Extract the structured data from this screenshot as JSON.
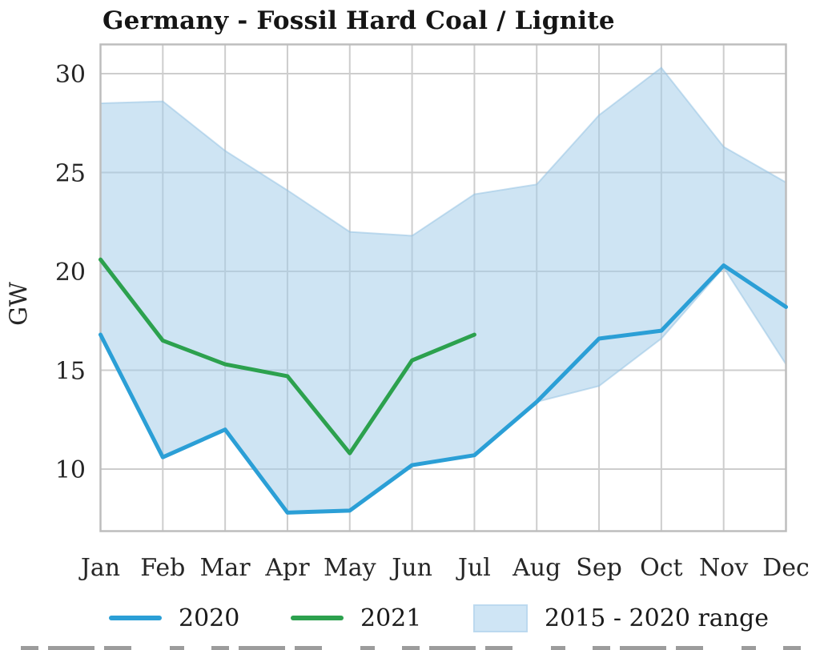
{
  "title": "Germany - Fossil Hard Coal / Lignite",
  "ylabel": "GW",
  "legend": [
    {
      "label": "2020",
      "swatch": "line",
      "color": "#2b9fd6"
    },
    {
      "label": "2021",
      "swatch": "line",
      "color": "#2ca14e"
    },
    {
      "label": "2015 - 2020 range",
      "swatch": "patch",
      "color": "#cfe5f5"
    }
  ],
  "colors": {
    "line_2020": "#2b9fd6",
    "line_2021": "#2ca14e",
    "band_fill": "#a6cde9",
    "band_edge": "#8fc0e2",
    "grid": "#cdcdcd",
    "spine": "#bdbdbd",
    "text": "#262626"
  },
  "chart_data": {
    "type": "line",
    "title": "Germany - Fossil Hard Coal / Lignite",
    "xlabel": "",
    "ylabel": "GW",
    "categories": [
      "Jan",
      "Feb",
      "Mar",
      "Apr",
      "May",
      "Jun",
      "Jul",
      "Aug",
      "Sep",
      "Oct",
      "Nov",
      "Dec"
    ],
    "yticks": [
      10,
      15,
      20,
      25,
      30
    ],
    "ylim": [
      6.9,
      31.5
    ],
    "grid": true,
    "legend_position": "bottom",
    "series": [
      {
        "name": "2020",
        "type": "line",
        "color": "#2b9fd6",
        "values": [
          16.8,
          10.6,
          12.0,
          7.8,
          7.9,
          10.2,
          10.7,
          13.4,
          16.6,
          17.0,
          20.3,
          18.2
        ]
      },
      {
        "name": "2021",
        "type": "line",
        "color": "#2ca14e",
        "values": [
          20.6,
          16.5,
          15.3,
          14.7,
          10.8,
          15.5,
          16.8
        ]
      },
      {
        "name": "2015 - 2020 range",
        "type": "band",
        "fill": "#a6cde9",
        "opacity": 0.55,
        "edge": "#8fc0e2",
        "upper": [
          28.5,
          28.6,
          26.1,
          24.1,
          22.0,
          21.8,
          23.9,
          24.4,
          27.9,
          30.3,
          26.3,
          24.5
        ],
        "lower": [
          16.8,
          10.6,
          12.0,
          7.8,
          7.9,
          10.2,
          10.7,
          13.4,
          14.2,
          16.6,
          20.2,
          15.3
        ]
      }
    ]
  }
}
